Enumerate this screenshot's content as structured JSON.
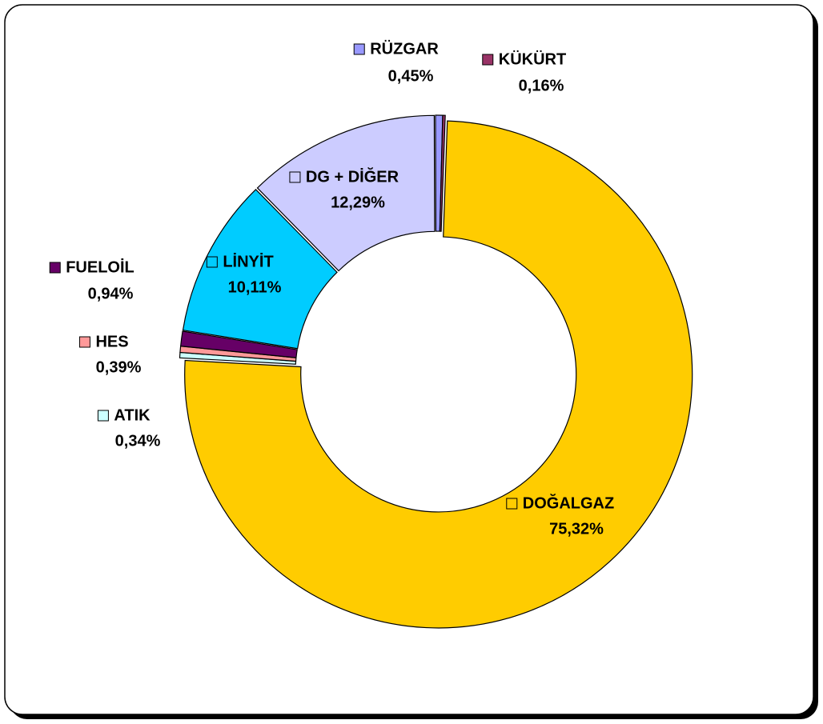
{
  "chart_data": {
    "type": "donut",
    "categories": [
      "DOĞALGAZ",
      "ATIK",
      "HES",
      "FUELOİL",
      "LİNYİT",
      "DG + DİĞER",
      "RÜZGAR",
      "KÜKÜRT"
    ],
    "values": [
      75.32,
      0.34,
      0.39,
      0.94,
      10.11,
      12.29,
      0.45,
      0.16
    ],
    "value_labels": [
      "75,32%",
      "0,34%",
      "0,39%",
      "0,94%",
      "10,11%",
      "12,29%",
      "0,45%",
      "0,16%"
    ],
    "colors": [
      "#FFCC00",
      "#CCFFFF",
      "#FF9999",
      "#660066",
      "#00CCFF",
      "#CCCCFF",
      "#9999FF",
      "#993366"
    ]
  }
}
